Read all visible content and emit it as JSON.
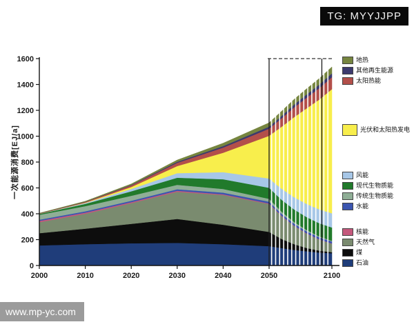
{
  "watermarks": {
    "tg": "TG: MYYJJPP",
    "site": "www.mp-yc.com"
  },
  "chart_data": {
    "type": "area",
    "stacked": true,
    "title": "",
    "xlabel": "",
    "ylabel": "一次能源消费[EJ/a]",
    "ylim": [
      0,
      1600
    ],
    "y_ticks": [
      0,
      200,
      400,
      600,
      800,
      1000,
      1200,
      1400,
      1600
    ],
    "x_ticks": [
      2000,
      2010,
      2020,
      2030,
      2040,
      2050,
      2100
    ],
    "x_axis_note": "years after 2050 are compressed on the x axis",
    "grid": false,
    "x": [
      2000,
      2010,
      2020,
      2030,
      2040,
      2050,
      2060,
      2070,
      2080,
      2090,
      2100
    ],
    "series": [
      {
        "key": "oil",
        "name": "石油",
        "color": "#1f3d7a",
        "values": [
          155,
          165,
          172,
          175,
          165,
          150,
          135,
          120,
          110,
          100,
          95
        ]
      },
      {
        "key": "coal",
        "name": "煤",
        "color": "#0d0d0d",
        "values": [
          95,
          120,
          150,
          185,
          150,
          110,
          70,
          45,
          25,
          15,
          8
        ]
      },
      {
        "key": "natural_gas",
        "name": "天然气",
        "color": "#7a8b6f",
        "values": [
          85,
          115,
          160,
          210,
          230,
          215,
          175,
          140,
          110,
          85,
          65
        ]
      },
      {
        "key": "nuclear",
        "name": "核能",
        "color": "#c4587c",
        "values": [
          10,
          9,
          8,
          8,
          6,
          5,
          4,
          3,
          3,
          2,
          2
        ]
      },
      {
        "key": "hydro",
        "name": "水能",
        "color": "#3b55b0",
        "values": [
          9,
          10,
          11,
          12,
          13,
          14,
          15,
          15,
          16,
          16,
          16
        ]
      },
      {
        "key": "trad_biomass",
        "name": "传统生物质能",
        "color": "#8fae96",
        "values": [
          38,
          40,
          38,
          34,
          28,
          22,
          17,
          13,
          10,
          7,
          5
        ]
      },
      {
        "key": "modern_biomass",
        "name": "现代生物质能",
        "color": "#217a2b",
        "values": [
          7,
          18,
          35,
          55,
          75,
          85,
          92,
          97,
          100,
          102,
          103
        ]
      },
      {
        "key": "wind",
        "name": "风能",
        "color": "#a7c7e7",
        "values": [
          1,
          6,
          18,
          35,
          55,
          72,
          85,
          95,
          102,
          107,
          110
        ]
      },
      {
        "key": "pv_solar_power",
        "name": "光伏和太阳热发电",
        "color": "#f8ee4c",
        "values": [
          0,
          3,
          15,
          55,
          150,
          330,
          480,
          620,
          740,
          850,
          960
        ]
      },
      {
        "key": "solar_thermal",
        "name": "太阳热能",
        "color": "#b34f4a",
        "values": [
          2,
          5,
          12,
          25,
          40,
          55,
          65,
          75,
          82,
          88,
          92
        ]
      },
      {
        "key": "other_renewables",
        "name": "其他再生能源",
        "color": "#3c3a6e",
        "values": [
          1,
          2,
          4,
          8,
          12,
          16,
          20,
          23,
          26,
          28,
          30
        ]
      },
      {
        "key": "geothermal",
        "name": "地热",
        "color": "#76853f",
        "values": [
          2,
          4,
          8,
          14,
          22,
          30,
          36,
          40,
          44,
          47,
          50
        ]
      }
    ],
    "legend": {
      "position": "right",
      "groups_top_to_bottom": [
        [
          "geothermal",
          "other_renewables",
          "solar_thermal"
        ],
        [
          "pv_solar_power"
        ],
        [
          "wind",
          "modern_biomass",
          "trad_biomass",
          "hydro"
        ],
        [
          "nuclear",
          "natural_gas",
          "coal",
          "oil"
        ]
      ]
    },
    "annotations": {
      "solid_vertical_line_years": [
        2050,
        2092
      ],
      "dashed_horizontal_line_value": 1600,
      "bar_separator_region_years": [
        2052,
        2098
      ]
    }
  }
}
